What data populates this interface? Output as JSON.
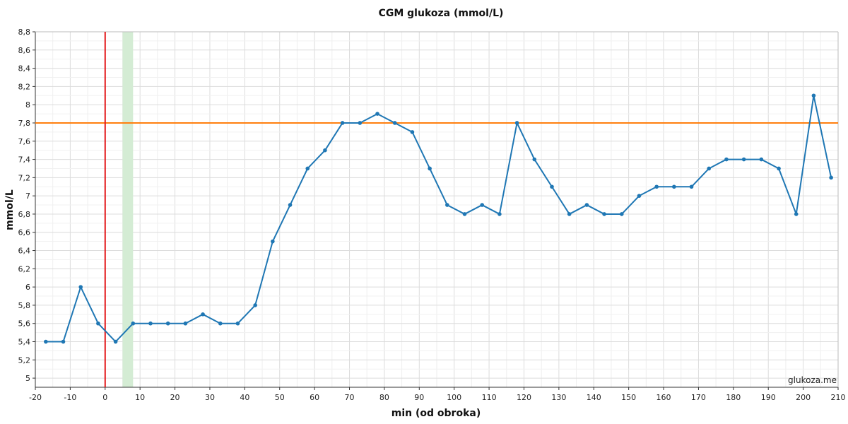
{
  "chart_data": {
    "type": "line",
    "title": "CGM glukoza (mmol/L)",
    "xlabel": "min (od obroka)",
    "ylabel": "mmol/L",
    "xlim": [
      -20,
      210
    ],
    "ylim": [
      4.9,
      8.8
    ],
    "x_ticks": [
      -20,
      -10,
      0,
      10,
      20,
      30,
      40,
      50,
      60,
      70,
      80,
      90,
      100,
      110,
      120,
      130,
      140,
      150,
      160,
      170,
      180,
      190,
      200,
      210
    ],
    "y_ticks": [
      5,
      5.2,
      5.4,
      5.6,
      5.8,
      6,
      6.2,
      6.4,
      6.6,
      6.8,
      7,
      7.2,
      7.4,
      7.6,
      7.8,
      8,
      8.2,
      8.4,
      8.6,
      8.8
    ],
    "y_tick_labels": [
      "5",
      "5,2",
      "5,4",
      "5,6",
      "5,8",
      "6",
      "6,2",
      "6,4",
      "6,6",
      "6,8",
      "7",
      "7,2",
      "7,4",
      "7,6",
      "7,8",
      "8",
      "8,2",
      "8,4",
      "8,6",
      "8,8"
    ],
    "grid": true,
    "series": [
      {
        "color": "#1f77b4",
        "x": [
          -17,
          -12,
          -7,
          -2,
          3,
          8,
          13,
          18,
          23,
          28,
          33,
          38,
          43,
          48,
          53,
          58,
          63,
          68,
          73,
          78,
          83,
          88,
          93,
          98,
          103,
          108,
          113,
          118,
          123,
          128,
          133,
          138,
          143,
          148,
          153,
          158,
          163,
          168,
          173,
          178,
          183,
          188,
          193,
          198,
          203,
          208
        ],
        "y": [
          5.4,
          5.4,
          6.0,
          5.6,
          5.4,
          5.6,
          5.6,
          5.6,
          5.6,
          5.7,
          5.6,
          5.6,
          5.8,
          6.5,
          6.9,
          7.3,
          7.5,
          7.8,
          7.8,
          7.9,
          7.8,
          7.7,
          7.3,
          6.9,
          6.8,
          6.9,
          6.8,
          7.8,
          7.4,
          7.1,
          6.8,
          6.9,
          6.8,
          6.8,
          7.0,
          7.1,
          7.1,
          7.1,
          7.3,
          7.4,
          7.4,
          7.4,
          7.3,
          6.8,
          8.1,
          7.2
        ]
      }
    ],
    "annotations": {
      "vertical_line_x": 0,
      "vertical_line_color": "#e31a1c",
      "horizontal_line_y": 7.8,
      "horizontal_line_color": "#ff7f0e",
      "shaded_band_x": [
        5,
        8
      ],
      "shaded_band_color": "#d4ecd4"
    },
    "watermark": "glukoza.me"
  }
}
